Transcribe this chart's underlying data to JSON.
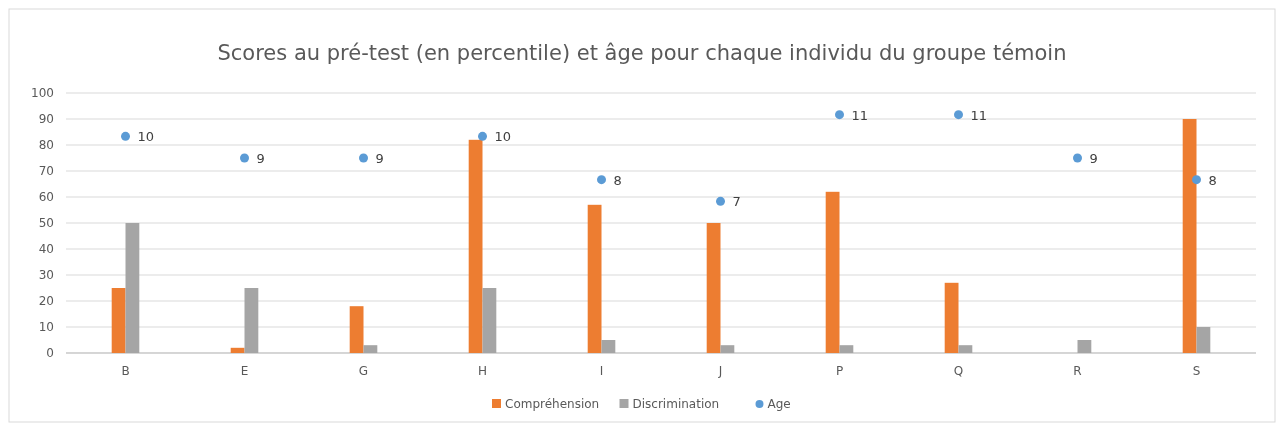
{
  "chart_data": {
    "type": "bar",
    "title": "Scores au pré-test (en percentile) et âge pour chaque individu du groupe témoin",
    "categories": [
      "B",
      "E",
      "G",
      "H",
      "I",
      "J",
      "P",
      "Q",
      "R",
      "S"
    ],
    "series": [
      {
        "name": "Compréhension",
        "color": "#ed7d31",
        "values": [
          25,
          2,
          18,
          82,
          57,
          50,
          62,
          27,
          null,
          90
        ]
      },
      {
        "name": "Discrimination",
        "color": "#a5a5a5",
        "values": [
          50,
          25,
          3,
          25,
          5,
          3,
          3,
          3,
          5,
          10
        ]
      },
      {
        "name": "Age",
        "type": "scatter",
        "axis": "y2",
        "color": "#5b9bd5",
        "values": [
          10,
          9,
          9,
          10,
          8,
          7,
          11,
          11,
          9,
          8
        ],
        "value_labels": [
          "10",
          "9",
          "9",
          "10",
          "8",
          "7",
          "11",
          "11",
          "9",
          "8"
        ]
      }
    ],
    "ylim": [
      0,
      100
    ],
    "yticks": [
      0,
      10,
      20,
      30,
      40,
      50,
      60,
      70,
      80,
      90,
      100
    ],
    "y2lim": [
      0,
      12
    ],
    "grid": "y",
    "legend": "bottom",
    "marker": "circle"
  }
}
